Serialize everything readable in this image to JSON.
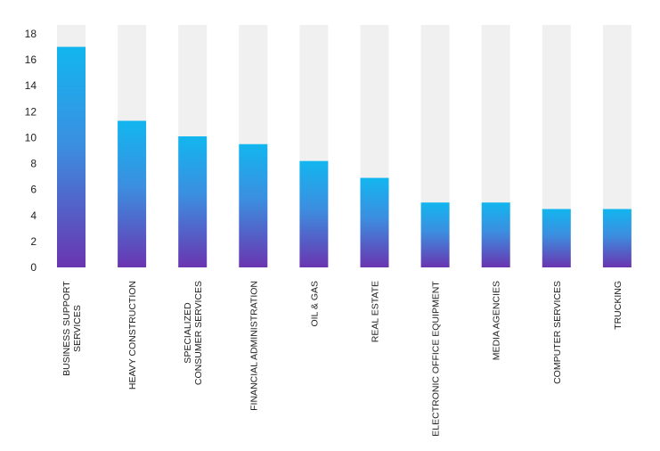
{
  "chart_data": {
    "type": "bar",
    "categories": [
      [
        "BUSINESS SUPPORT",
        "SERVICES"
      ],
      [
        "HEAVY CONSTRUCTION"
      ],
      [
        "SPECIALIZED",
        "CONSUMER SERVICES"
      ],
      [
        "FINANCIAL ADMINISTRATION"
      ],
      [
        "OIL & GAS"
      ],
      [
        "REAL ESTATE"
      ],
      [
        "ELECTRONIC OFFICE EQUIPMENT"
      ],
      [
        "MEDIA AGENCIES"
      ],
      [
        "COMPUTER SERVICES"
      ],
      [
        "TRUCKING"
      ]
    ],
    "values": [
      17,
      11.3,
      10.1,
      9.5,
      8.2,
      6.9,
      5.0,
      5.0,
      4.5,
      4.5
    ],
    "title": "",
    "xlabel": "",
    "ylabel": "",
    "ylim": [
      0,
      18
    ],
    "yticks": [
      0,
      2,
      4,
      6,
      8,
      10,
      12,
      14,
      16,
      18
    ],
    "grid": false,
    "legend": "none",
    "background_bar": true
  },
  "colors": {
    "bar_top": "#12b6ef",
    "bar_mid": "#3c8ee0",
    "bar_bottom": "#6a35b0",
    "track": "#f0f0f0"
  }
}
